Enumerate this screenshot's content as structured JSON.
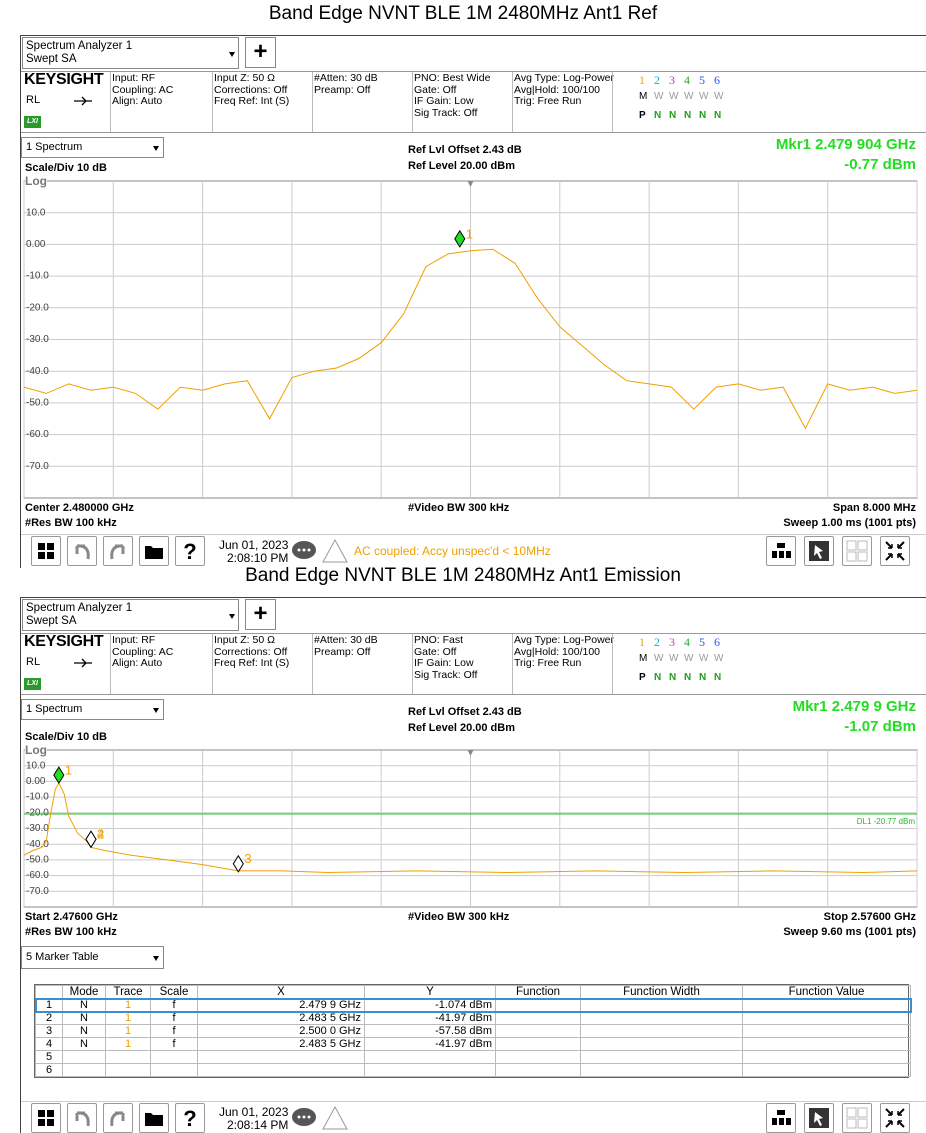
{
  "panels": [
    {
      "title": "Band Edge NVNT BLE 1M 2480MHz Ant1 Ref",
      "app": {
        "name": "Spectrum Analyzer 1",
        "mode": "Swept SA",
        "add": "+"
      },
      "brand": "KEYSIGHT",
      "rl": "RL",
      "lxi": "LXI",
      "info": [
        [
          "Input: RF",
          "Coupling: AC",
          "Align: Auto"
        ],
        [
          "Input Z: 50 Ω",
          "Corrections: Off",
          "Freq Ref: Int (S)"
        ],
        [
          "#Atten: 30 dB",
          "Preamp: Off"
        ],
        [
          "PNO: Best Wide",
          "Gate: Off",
          "IF Gain: Low",
          "Sig Track: Off"
        ],
        [
          "Avg Type: Log-Power",
          "Avg|Hold: 100/100",
          "Trig: Free Run"
        ]
      ],
      "traces": {
        "numbers": [
          "1",
          "2",
          "3",
          "4",
          "5",
          "6"
        ],
        "colors": [
          "#f0a000",
          "#00b8d8",
          "#e030e0",
          "#20b020",
          "#3050ff",
          "#3050ff"
        ],
        "type_row": [
          "M",
          "W",
          "W",
          "W",
          "W",
          "W"
        ],
        "det_row": [
          "P",
          "N",
          "N",
          "N",
          "N",
          "N"
        ]
      },
      "window": "1 Spectrum",
      "ref_offset": "Ref Lvl Offset 2.43 dB",
      "ref_level": "Ref Level 20.00 dBm",
      "marker_readout": "Mkr1  2.479 904 GHz",
      "marker_value": "-0.77 dBm",
      "scale_div": "Scale/Div 10 dB",
      "scale_type": "Log",
      "chart": {
        "type": "line",
        "xlim": [
          2.476,
          2.484
        ],
        "ylim": [
          -80,
          20
        ],
        "xticks": [
          2.476,
          2.4768,
          2.4776,
          2.4784,
          2.4792,
          2.48,
          2.4808,
          2.4816,
          2.4824,
          2.4832,
          2.484
        ],
        "yticks": [
          {
            "value": 10,
            "label": "10.0"
          },
          {
            "value": 0,
            "label": "0.00"
          },
          {
            "value": -10,
            "label": "-10.0"
          },
          {
            "value": -20,
            "label": "-20.0"
          },
          {
            "value": -30,
            "label": "-30.0"
          },
          {
            "value": -40,
            "label": "-40.0"
          },
          {
            "value": -50,
            "label": "-50.0"
          },
          {
            "value": -60,
            "label": "-60.0"
          },
          {
            "value": -70,
            "label": "-70.0"
          }
        ],
        "trace": {
          "color": "#f0a000",
          "x": [
            2.476,
            2.4762,
            2.4764,
            2.4766,
            2.4768,
            2.477,
            2.4772,
            2.4774,
            2.4776,
            2.4778,
            2.478,
            2.4782,
            2.4784,
            2.4786,
            2.4788,
            2.479,
            2.4792,
            2.4794,
            2.4796,
            2.4798,
            2.48,
            2.4802,
            2.4804,
            2.4806,
            2.4808,
            2.481,
            2.4812,
            2.4814,
            2.4816,
            2.4818,
            2.482,
            2.4822,
            2.4824,
            2.4826,
            2.4828,
            2.483,
            2.4832,
            2.4834,
            2.4836,
            2.4838,
            2.484
          ],
          "y": [
            -45,
            -47,
            -44,
            -46,
            -45,
            -47,
            -52,
            -45,
            -46,
            -44,
            -43,
            -55,
            -42,
            -40,
            -39,
            -36,
            -31,
            -22,
            -7,
            -3,
            -2,
            -1.5,
            -6,
            -17,
            -26,
            -32,
            -38,
            -43,
            -44,
            -45,
            -52,
            -45,
            -44,
            -46,
            -45,
            -58,
            -44,
            -46,
            -45,
            -47,
            -46
          ]
        },
        "markers": [
          {
            "label": "1",
            "x": 2.479904,
            "y": -0.77,
            "active": true
          }
        ]
      },
      "footer": {
        "left_top": "Center 2.480000 GHz",
        "center": "#Video BW 300 kHz",
        "right_top": "Span 8.000 MHz",
        "left_bottom": "#Res BW 100 kHz",
        "right_bottom": "Sweep 1.00 ms (1001 pts)"
      },
      "status": {
        "date": "Jun 01, 2023",
        "time": "2:08:10 PM",
        "message": "AC coupled: Accy unspec'd < 10MHz"
      }
    },
    {
      "title": "Band Edge NVNT BLE 1M 2480MHz Ant1 Emission",
      "app": {
        "name": "Spectrum Analyzer 1",
        "mode": "Swept SA",
        "add": "+"
      },
      "brand": "KEYSIGHT",
      "rl": "RL",
      "lxi": "LXI",
      "info": [
        [
          "Input: RF",
          "Coupling: AC",
          "Align: Auto"
        ],
        [
          "Input Z: 50 Ω",
          "Corrections: Off",
          "Freq Ref: Int (S)"
        ],
        [
          "#Atten: 30 dB",
          "Preamp: Off"
        ],
        [
          "PNO: Fast",
          "Gate: Off",
          "IF Gain: Low",
          "Sig Track: Off"
        ],
        [
          "Avg Type: Log-Power",
          "Avg|Hold: 100/100",
          "Trig: Free Run"
        ]
      ],
      "traces": {
        "numbers": [
          "1",
          "2",
          "3",
          "4",
          "5",
          "6"
        ],
        "colors": [
          "#f0a000",
          "#00b8d8",
          "#e030e0",
          "#20b020",
          "#3050ff",
          "#3050ff"
        ],
        "type_row": [
          "M",
          "W",
          "W",
          "W",
          "W",
          "W"
        ],
        "det_row": [
          "P",
          "N",
          "N",
          "N",
          "N",
          "N"
        ]
      },
      "window": "1 Spectrum",
      "ref_offset": "Ref Lvl Offset 2.43 dB",
      "ref_level": "Ref Level 20.00 dBm",
      "marker_readout": "Mkr1  2.479 9 GHz",
      "marker_value": "-1.07 dBm",
      "scale_div": "Scale/Div 10 dB",
      "scale_type": "Log",
      "chart": {
        "type": "line",
        "xlim": [
          2.476,
          2.576
        ],
        "ylim": [
          -80,
          20
        ],
        "xticks": [
          2.476,
          2.486,
          2.496,
          2.506,
          2.516,
          2.526,
          2.536,
          2.546,
          2.556,
          2.566,
          2.576
        ],
        "yticks": [
          {
            "value": 10,
            "label": "10.0"
          },
          {
            "value": 0,
            "label": "0.00"
          },
          {
            "value": -10,
            "label": "-10.0"
          },
          {
            "value": -20,
            "label": "-20.0"
          },
          {
            "value": -30,
            "label": "-30.0"
          },
          {
            "value": -40,
            "label": "-40.0"
          },
          {
            "value": -50,
            "label": "-50.0"
          },
          {
            "value": -60,
            "label": "-60.0"
          },
          {
            "value": -70,
            "label": "-70.0"
          }
        ],
        "trace": {
          "color": "#f0a000",
          "x": [
            2.476,
            2.477,
            2.478,
            2.4785,
            2.479,
            2.4795,
            2.4799,
            2.4805,
            2.481,
            2.482,
            2.483,
            2.4835,
            2.485,
            2.488,
            2.492,
            2.496,
            2.5,
            2.505,
            2.51,
            2.52,
            2.53,
            2.54,
            2.55,
            2.56,
            2.57,
            2.576
          ],
          "y": [
            -47,
            -44,
            -42,
            -38,
            -20,
            -5,
            -1,
            -8,
            -22,
            -33,
            -38,
            -42,
            -44,
            -47,
            -50,
            -53,
            -57,
            -57,
            -58,
            -57,
            -58,
            -57,
            -58,
            -57,
            -58,
            -57
          ]
        },
        "markers": [
          {
            "label": "1",
            "x": 2.4799,
            "y": -1.074,
            "active": true
          },
          {
            "label": "2",
            "x": 2.4835,
            "y": -41.97,
            "active": false
          },
          {
            "label": "3",
            "x": 2.5,
            "y": -57.58,
            "active": false
          },
          {
            "label": "4",
            "x": 2.4835,
            "y": -41.97,
            "active": false
          }
        ],
        "display_line": {
          "value": -20.77,
          "label": "DL1 -20.77 dBm",
          "color": "#20c020"
        }
      },
      "footer": {
        "left_top": "Start 2.47600 GHz",
        "center": "#Video BW 300 kHz",
        "right_top": "Stop 2.57600 GHz",
        "left_bottom": "#Res BW 100 kHz",
        "right_bottom": "Sweep 9.60 ms (1001 pts)"
      },
      "status": {
        "date": "Jun 01, 2023",
        "time": "2:08:14 PM"
      },
      "marker_table": {
        "selector": "5 Marker Table",
        "headers": [
          "",
          "Mode",
          "Trace",
          "Scale",
          "X",
          "Y",
          "Function",
          "Function Width",
          "Function Value"
        ],
        "rows": [
          [
            "1",
            "N",
            "1",
            "f",
            "2.479 9 GHz",
            "-1.074 dBm"
          ],
          [
            "2",
            "N",
            "1",
            "f",
            "2.483 5 GHz",
            "-41.97 dBm"
          ],
          [
            "3",
            "N",
            "1",
            "f",
            "2.500 0 GHz",
            "-57.58 dBm"
          ],
          [
            "4",
            "N",
            "1",
            "f",
            "2.483 5 GHz",
            "-41.97 dBm"
          ],
          [
            "5"
          ],
          [
            "6"
          ]
        ]
      }
    }
  ]
}
